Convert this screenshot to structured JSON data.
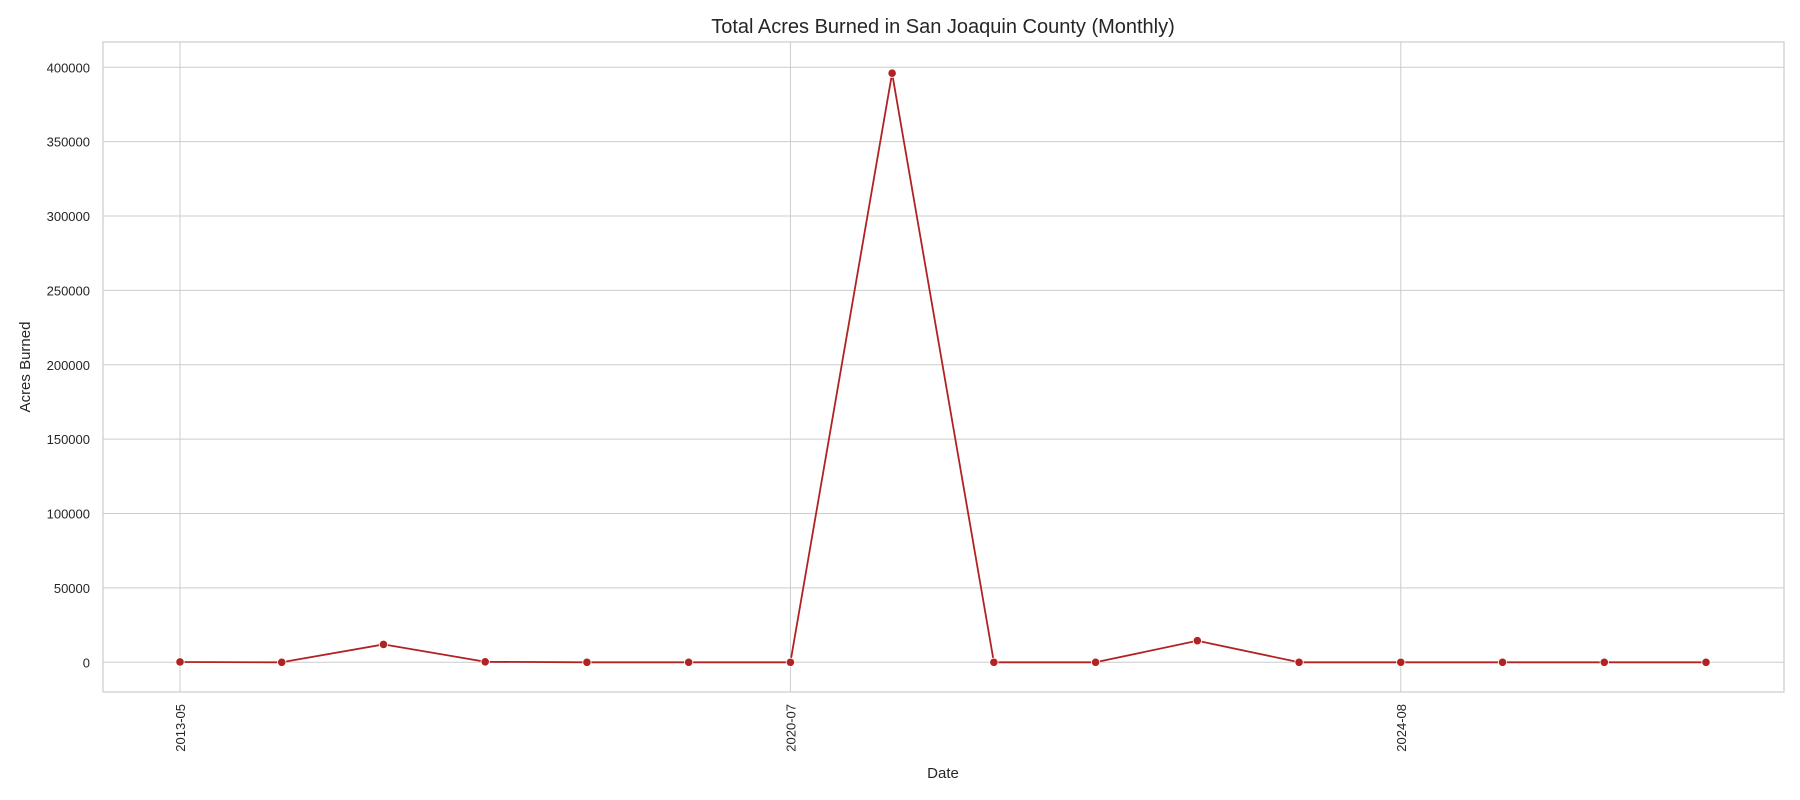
{
  "chart_data": {
    "type": "line",
    "title": "Total Acres Burned in San Joaquin County (Monthly)",
    "xlabel": "Date",
    "ylabel": "Acres Burned",
    "x_tick_labels": [
      "2013-05",
      "2020-07",
      "2024-08"
    ],
    "x_tick_indices": [
      0,
      6,
      12
    ],
    "y_ticks": [
      0,
      50000,
      100000,
      150000,
      200000,
      250000,
      300000,
      350000,
      400000
    ],
    "ylim": [
      -20000,
      417000
    ],
    "grid": true,
    "series": [
      {
        "color": "#b22222",
        "values": [
          200,
          0,
          12000,
          300,
          0,
          0,
          0,
          396000,
          0,
          0,
          14500,
          0,
          0,
          0,
          0,
          0
        ]
      }
    ]
  }
}
